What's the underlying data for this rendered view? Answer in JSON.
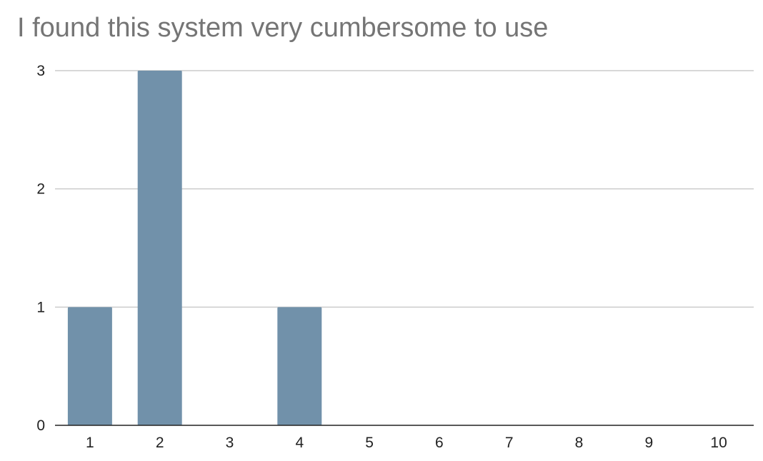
{
  "chart_data": {
    "type": "bar",
    "title": "I found this system very cumbersome to use",
    "xlabel": "",
    "ylabel": "",
    "categories": [
      "1",
      "2",
      "3",
      "4",
      "5",
      "6",
      "7",
      "8",
      "9",
      "10"
    ],
    "values": [
      1,
      3,
      0,
      1,
      0,
      0,
      0,
      0,
      0,
      0
    ],
    "ylim": [
      0,
      3
    ],
    "yticks": [
      0,
      1,
      2,
      3
    ],
    "grid": true,
    "legend": "none",
    "bar_color": "#7191aa",
    "grid_color": "#cccccc",
    "axis_color": "#222222"
  }
}
